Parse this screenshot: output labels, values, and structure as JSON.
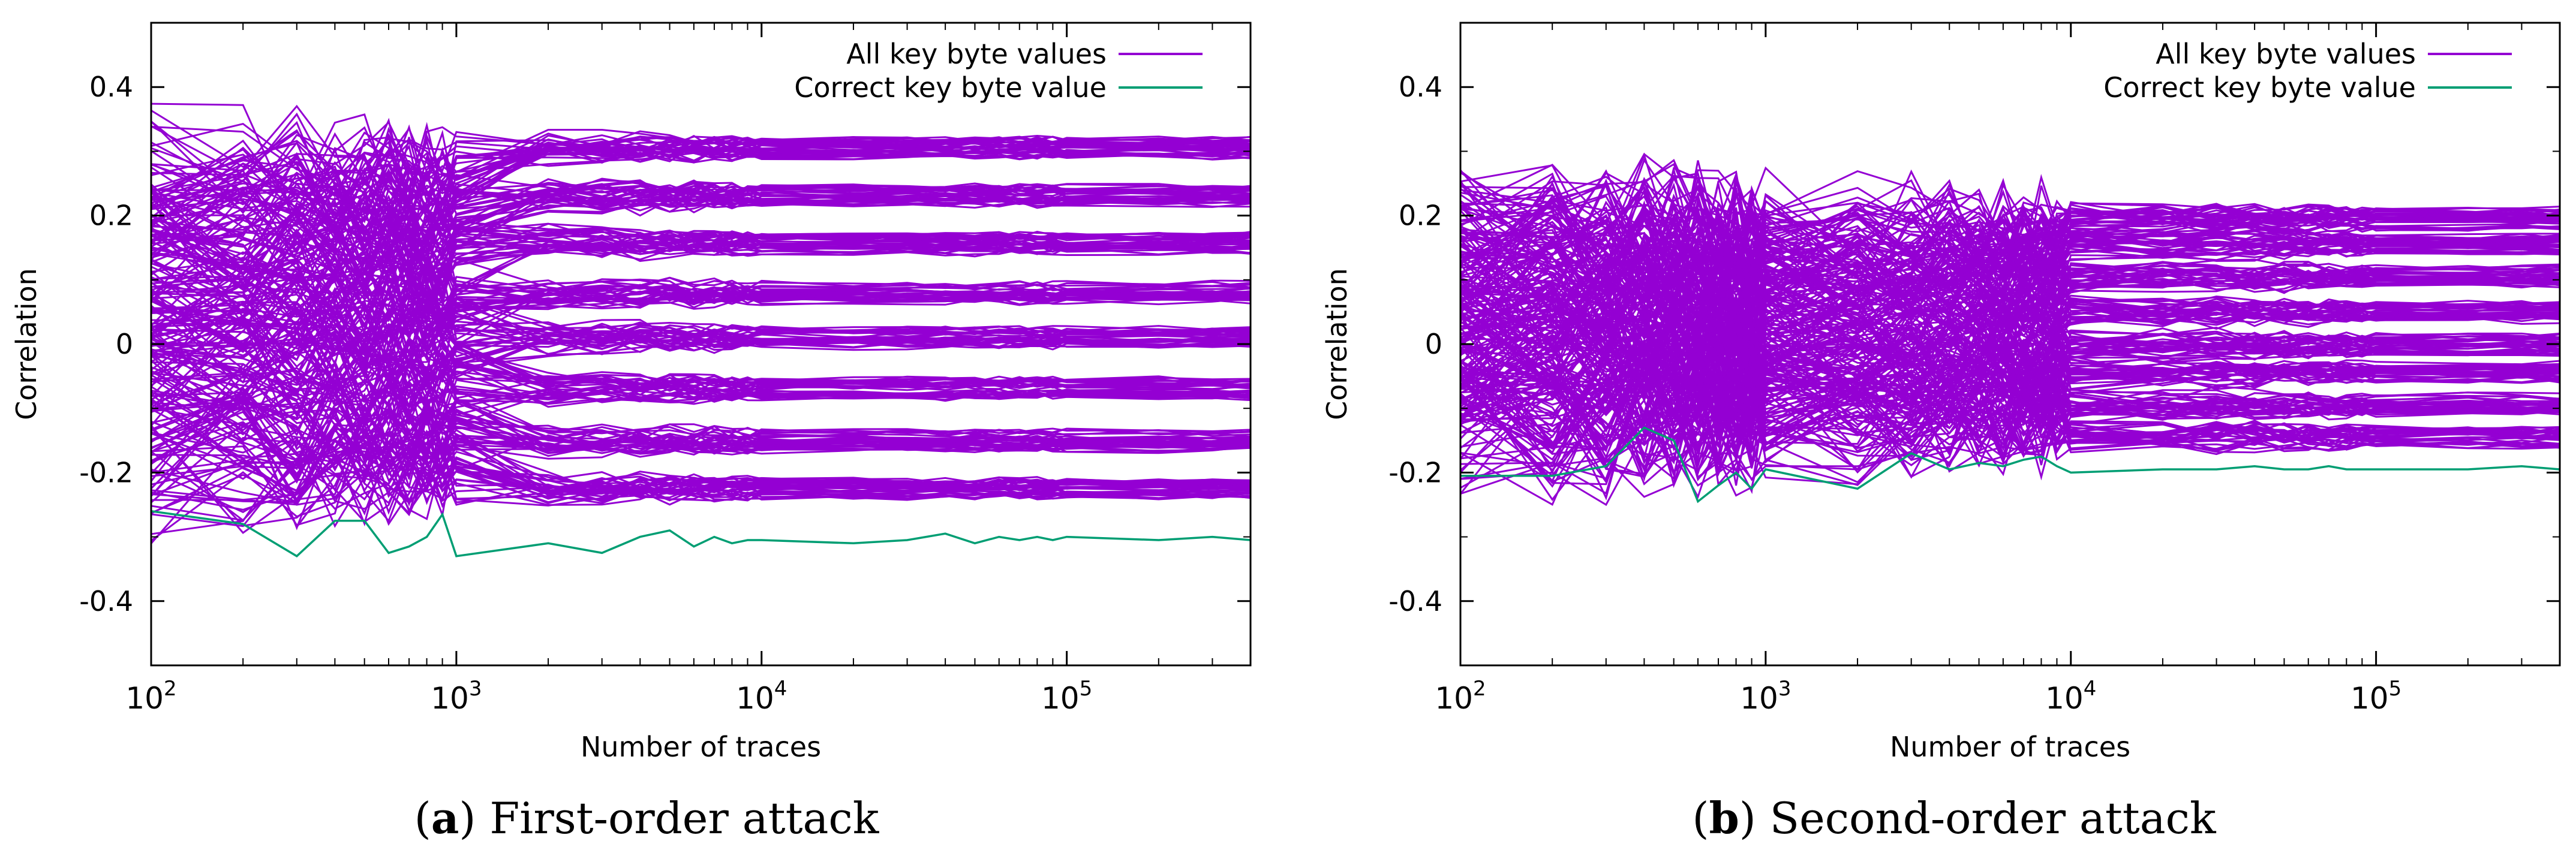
{
  "figure": {
    "colors": {
      "all_key_byte": "#9400D3",
      "correct_key_byte": "#009E73",
      "axis": "#000000"
    }
  },
  "chart_data": [
    {
      "type": "line",
      "panel_label": "a",
      "caption": "First-order attack",
      "xlabel": "Number of traces",
      "ylabel": "Correlation",
      "xscale": "log",
      "xlim": [
        100,
        400000
      ],
      "ylim": [
        -0.5,
        0.5
      ],
      "x_ticks": [
        {
          "value": 100,
          "base": "10",
          "exp": "2"
        },
        {
          "value": 1000,
          "base": "10",
          "exp": "3"
        },
        {
          "value": 10000,
          "base": "10",
          "exp": "4"
        },
        {
          "value": 100000,
          "base": "10",
          "exp": "5"
        }
      ],
      "y_ticks": [
        {
          "value": 0.4,
          "label": "0.4"
        },
        {
          "value": 0.2,
          "label": "0.2"
        },
        {
          "value": 0,
          "label": "0"
        },
        {
          "value": -0.2,
          "label": "-0.2"
        },
        {
          "value": -0.4,
          "label": "-0.4"
        }
      ],
      "legend": {
        "position": "top-right"
      },
      "x": [
        100,
        200,
        300,
        400,
        500,
        600,
        700,
        800,
        900,
        1000,
        2000,
        3000,
        4000,
        5000,
        6000,
        7000,
        8000,
        9000,
        10000,
        20000,
        30000,
        40000,
        50000,
        60000,
        70000,
        80000,
        90000,
        100000,
        200000,
        300000,
        400000
      ],
      "series": [
        {
          "name": "All key byte values",
          "color": "#9400D3",
          "line_count": 255,
          "levels": [
            0.305,
            0.23,
            0.155,
            0.08,
            0.01,
            -0.07,
            -0.15,
            -0.225
          ],
          "sample_lines": [
            {
              "values": [
                0.28,
                0.27,
                0.33,
                0.27,
                0.27,
                0.32,
                0.315,
                0.3,
                0.27,
                0.33,
                0.31,
                0.325,
                0.31,
                0.29,
                0.305,
                0.3,
                0.3,
                0.3,
                0.3,
                0.31,
                0.305,
                0.3,
                0.305,
                0.3,
                0.305,
                0.3,
                0.305,
                0.3,
                0.305,
                0.3,
                0.305
              ]
            },
            {
              "values": [
                0.22,
                0.25,
                0.24,
                0.2,
                0.22,
                0.26,
                0.24,
                0.2,
                0.18,
                0.24,
                0.22,
                0.23,
                0.2,
                0.225,
                0.23,
                0.215,
                0.23,
                0.22,
                0.23,
                0.23,
                0.225,
                0.23,
                0.225,
                0.23,
                0.225,
                0.23,
                0.225,
                0.23,
                0.225,
                0.23,
                0.23
              ]
            },
            {
              "values": [
                0.17,
                0.1,
                0.2,
                0.12,
                0.14,
                0.2,
                0.1,
                0.16,
                0.12,
                0.18,
                0.16,
                0.15,
                0.14,
                0.15,
                0.16,
                0.15,
                0.155,
                0.15,
                0.155,
                0.155,
                0.15,
                0.155,
                0.15,
                0.155,
                0.15,
                0.155,
                0.15,
                0.155,
                0.15,
                0.155,
                0.155
              ]
            },
            {
              "values": [
                -0.2,
                -0.18,
                -0.25,
                -0.24,
                -0.2,
                -0.18,
                -0.26,
                -0.22,
                -0.2,
                -0.25,
                -0.22,
                -0.23,
                -0.21,
                -0.23,
                -0.22,
                -0.225,
                -0.22,
                -0.225,
                -0.22,
                -0.225,
                -0.22,
                -0.225,
                -0.22,
                -0.225,
                -0.22,
                -0.225,
                -0.22,
                -0.225,
                -0.22,
                -0.225,
                -0.225
              ]
            }
          ]
        },
        {
          "name": "Correct key byte value",
          "color": "#009E73",
          "values": [
            -0.26,
            -0.28,
            -0.33,
            -0.275,
            -0.275,
            -0.325,
            -0.315,
            -0.3,
            -0.265,
            -0.33,
            -0.31,
            -0.325,
            -0.3,
            -0.29,
            -0.315,
            -0.3,
            -0.31,
            -0.305,
            -0.305,
            -0.31,
            -0.305,
            -0.295,
            -0.31,
            -0.3,
            -0.305,
            -0.3,
            -0.305,
            -0.3,
            -0.305,
            -0.3,
            -0.305
          ]
        }
      ]
    },
    {
      "type": "line",
      "panel_label": "b",
      "caption": "Second-order attack",
      "xlabel": "Number of traces",
      "ylabel": "Correlation",
      "xscale": "log",
      "xlim": [
        100,
        400000
      ],
      "ylim": [
        -0.5,
        0.5
      ],
      "x_ticks": [
        {
          "value": 100,
          "base": "10",
          "exp": "2"
        },
        {
          "value": 1000,
          "base": "10",
          "exp": "3"
        },
        {
          "value": 10000,
          "base": "10",
          "exp": "4"
        },
        {
          "value": 100000,
          "base": "10",
          "exp": "5"
        }
      ],
      "y_ticks": [
        {
          "value": 0.4,
          "label": "0.4"
        },
        {
          "value": 0.2,
          "label": "0.2"
        },
        {
          "value": 0,
          "label": "0"
        },
        {
          "value": -0.2,
          "label": "-0.2"
        },
        {
          "value": -0.4,
          "label": "-0.4"
        }
      ],
      "legend": {
        "position": "top-right"
      },
      "x": [
        100,
        200,
        300,
        400,
        500,
        600,
        700,
        800,
        900,
        1000,
        2000,
        3000,
        4000,
        5000,
        6000,
        7000,
        8000,
        9000,
        10000,
        20000,
        30000,
        40000,
        50000,
        60000,
        70000,
        80000,
        90000,
        100000,
        200000,
        300000,
        400000
      ],
      "series": [
        {
          "name": "All key byte values",
          "color": "#9400D3",
          "line_count": 255,
          "levels": [
            0.195,
            0.155,
            0.105,
            0.05,
            0.0,
            -0.045,
            -0.095,
            -0.145
          ],
          "sample_lines": [
            {
              "values": [
                0.24,
                0.22,
                0.25,
                0.13,
                0.14,
                0.245,
                0.22,
                0.18,
                0.16,
                0.2,
                0.22,
                0.19,
                0.18,
                0.19,
                0.18,
                0.185,
                0.19,
                0.19,
                0.2,
                0.195,
                0.19,
                0.195,
                0.195,
                0.19,
                0.195,
                0.195,
                0.195,
                0.19,
                0.195,
                0.195,
                0.195
              ]
            },
            {
              "values": [
                0.21,
                0.2,
                0.23,
                0.12,
                0.1,
                0.2,
                0.19,
                0.17,
                0.14,
                0.18,
                0.2,
                0.17,
                0.16,
                0.17,
                0.16,
                0.165,
                0.17,
                0.16,
                0.16,
                0.155,
                0.16,
                0.155,
                0.155,
                0.16,
                0.155,
                0.155,
                0.155,
                0.16,
                0.155,
                0.155,
                0.155
              ]
            },
            {
              "values": [
                -0.21,
                -0.2,
                -0.25,
                -0.14,
                -0.16,
                -0.22,
                -0.2,
                -0.18,
                -0.21,
                -0.19,
                -0.19,
                -0.17,
                -0.16,
                -0.17,
                -0.16,
                -0.165,
                -0.16,
                -0.155,
                -0.15,
                -0.145,
                -0.15,
                -0.145,
                -0.145,
                -0.15,
                -0.145,
                -0.145,
                -0.145,
                -0.15,
                -0.145,
                -0.145,
                -0.145
              ]
            }
          ]
        },
        {
          "name": "Correct key byte value",
          "color": "#009E73",
          "values": [
            -0.205,
            -0.205,
            -0.19,
            -0.13,
            -0.15,
            -0.245,
            -0.22,
            -0.2,
            -0.225,
            -0.195,
            -0.225,
            -0.17,
            -0.195,
            -0.185,
            -0.19,
            -0.18,
            -0.175,
            -0.19,
            -0.2,
            -0.195,
            -0.195,
            -0.19,
            -0.195,
            -0.195,
            -0.19,
            -0.195,
            -0.195,
            -0.195,
            -0.195,
            -0.19,
            -0.195
          ]
        }
      ]
    }
  ]
}
